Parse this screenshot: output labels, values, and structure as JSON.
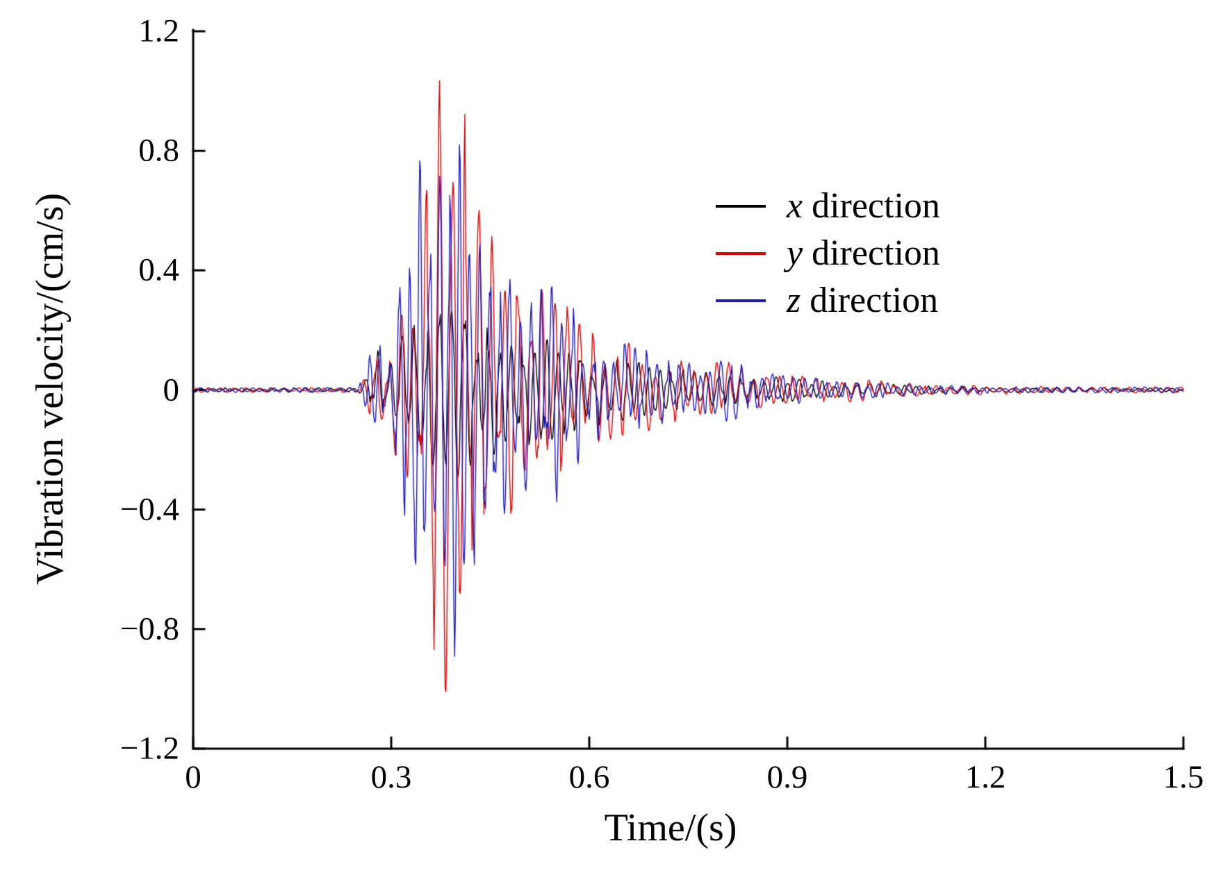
{
  "figure": {
    "background": "#ffffff"
  },
  "chart_data": {
    "type": "line",
    "title": "",
    "xlabel": "Time/(s)",
    "ylabel": "Vibration velocity/(cm/s)",
    "xlim": [
      0,
      1.5
    ],
    "ylim": [
      -1.2,
      1.2
    ],
    "xticks": [
      0,
      0.3,
      0.6,
      0.9,
      1.2,
      1.5
    ],
    "xtick_labels": [
      "0",
      "0.3",
      "0.6",
      "0.9",
      "1.2",
      "1.5"
    ],
    "yticks": [
      -1.2,
      -0.8,
      -0.4,
      0,
      0.4,
      0.8,
      1.2
    ],
    "ytick_labels": [
      "−1.2",
      "−0.8",
      "−0.4",
      "0",
      "0.4",
      "0.8",
      "1.2"
    ],
    "grid": false,
    "legend_position": "upper-right",
    "axis_color": "#000000",
    "envelope_t": [
      0.0,
      0.25,
      0.265,
      0.28,
      0.295,
      0.315,
      0.33,
      0.345,
      0.36,
      0.375,
      0.39,
      0.405,
      0.42,
      0.44,
      0.46,
      0.48,
      0.5,
      0.52,
      0.55,
      0.58,
      0.61,
      0.64,
      0.67,
      0.7,
      0.74,
      0.78,
      0.82,
      0.86,
      0.9,
      0.95,
      1.0,
      1.05,
      1.1,
      1.2,
      1.35,
      1.5
    ],
    "series": [
      {
        "name": "x direction",
        "variable": "x",
        "label_rest": " direction",
        "color": "#000000",
        "envelope": [
          0.008,
          0.008,
          0.06,
          0.14,
          0.09,
          0.18,
          0.22,
          0.24,
          0.26,
          0.3,
          0.28,
          0.33,
          0.28,
          0.24,
          0.22,
          0.2,
          0.19,
          0.18,
          0.17,
          0.14,
          0.12,
          0.11,
          0.1,
          0.08,
          0.07,
          0.06,
          0.05,
          0.05,
          0.04,
          0.03,
          0.03,
          0.02,
          0.015,
          0.01,
          0.008,
          0.008
        ]
      },
      {
        "name": "y direction",
        "variable": "y",
        "label_rest": " direction",
        "color": "#e60000",
        "envelope": [
          0.008,
          0.008,
          0.09,
          0.16,
          0.1,
          0.32,
          0.45,
          0.52,
          0.78,
          1.12,
          0.92,
          1.19,
          0.8,
          0.62,
          0.5,
          0.45,
          0.42,
          0.4,
          0.32,
          0.25,
          0.18,
          0.17,
          0.16,
          0.13,
          0.1,
          0.09,
          0.1,
          0.06,
          0.05,
          0.05,
          0.04,
          0.03,
          0.02,
          0.015,
          0.01,
          0.01
        ]
      },
      {
        "name": "z direction",
        "variable": "z",
        "label_rest": " direction",
        "color": "#1a1ac8",
        "envelope": [
          0.008,
          0.008,
          0.11,
          0.17,
          0.12,
          0.52,
          0.42,
          0.85,
          0.62,
          0.82,
          1.05,
          1.1,
          0.68,
          0.55,
          0.45,
          0.4,
          0.36,
          0.33,
          0.38,
          0.26,
          0.2,
          0.16,
          0.15,
          0.12,
          0.1,
          0.08,
          0.12,
          0.06,
          0.05,
          0.04,
          0.03,
          0.025,
          0.02,
          0.012,
          0.01,
          0.01
        ]
      }
    ],
    "peaks_note": "y peaks at ~+1.19 and -1.15 cm/s near t=0.40 s; z peaks ~+0.85 near t=0.34 s and ~-1.1 near t=0.40 s; signal quiescent before t=0.27 s and after t~1.1 s"
  }
}
